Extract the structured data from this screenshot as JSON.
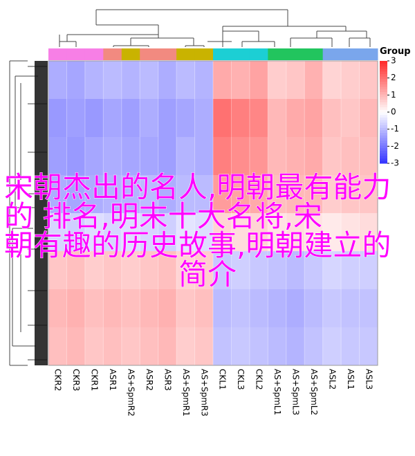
{
  "chart_data": {
    "type": "heatmap",
    "columns": [
      "CKR2",
      "CKR3",
      "CKR1",
      "ASR1",
      "AS+SpmR2",
      "ASR2",
      "ASR3",
      "AS+SpmR1",
      "AS+SpmR3",
      "CKL1",
      "CKL3",
      "CKL2",
      "AS+SpmL1",
      "AS+SpmL3",
      "AS+SpmL2",
      "ASL2",
      "ASL1",
      "ASL3"
    ],
    "group_colors": [
      "#f77fe6",
      "#f77fe6",
      "#f77fe6",
      "#f28a80",
      "#c9b300",
      "#f28a80",
      "#f28a80",
      "#c9b300",
      "#c9b300",
      "#1ccfd4",
      "#1ccfd4",
      "#1ccfd4",
      "#22c55e",
      "#22c55e",
      "#22c55e",
      "#7aa6ec",
      "#7aa6ec",
      "#7aa6ec"
    ],
    "legend_title": "Group",
    "values": [
      [
        -1.2,
        -1.3,
        -1.1,
        -1.0,
        -1.1,
        -1.0,
        -1.2,
        -1.0,
        -1.1,
        1.2,
        1.1,
        1.3,
        0.7,
        0.8,
        1.1,
        0.6,
        0.7,
        0.8
      ],
      [
        -1.5,
        -1.4,
        -1.5,
        -1.3,
        -1.4,
        -1.2,
        -1.4,
        -1.3,
        -1.2,
        2.0,
        1.8,
        1.7,
        1.0,
        1.2,
        1.3,
        0.9,
        0.8,
        1.0
      ],
      [
        -1.4,
        -1.5,
        -1.3,
        -1.2,
        -1.3,
        -1.3,
        -1.4,
        -1.1,
        -1.2,
        1.8,
        1.6,
        1.5,
        1.0,
        1.1,
        1.2,
        0.8,
        0.9,
        0.9
      ],
      [
        -1.2,
        -1.3,
        -1.2,
        -1.1,
        -1.1,
        -1.0,
        -1.2,
        -1.0,
        -1.0,
        1.4,
        1.3,
        1.2,
        0.9,
        1.0,
        1.0,
        0.7,
        0.8,
        0.8
      ],
      [
        -0.6,
        -0.7,
        -0.5,
        -0.6,
        -0.5,
        -0.6,
        -0.7,
        -0.4,
        -0.5,
        0.6,
        0.5,
        0.6,
        0.4,
        0.5,
        0.4,
        0.3,
        0.4,
        0.5
      ],
      [
        0.8,
        0.9,
        0.7,
        0.8,
        0.7,
        0.8,
        0.9,
        0.6,
        0.7,
        -0.8,
        -0.7,
        -0.8,
        -0.9,
        -1.0,
        -0.8,
        -0.6,
        -0.7,
        -0.7
      ],
      [
        1.0,
        1.1,
        0.9,
        1.0,
        0.9,
        1.0,
        1.1,
        0.8,
        0.9,
        -1.0,
        -0.9,
        -1.0,
        -1.1,
        -1.2,
        -1.0,
        -0.8,
        -0.9,
        -0.9
      ],
      [
        0.9,
        1.0,
        0.8,
        0.9,
        0.8,
        0.9,
        1.0,
        0.7,
        0.8,
        -0.9,
        -0.8,
        -0.9,
        -1.0,
        -1.1,
        -0.9,
        -0.7,
        -0.8,
        -0.8
      ]
    ],
    "zlim": [
      -3,
      3
    ],
    "zticks": [
      3,
      2,
      1,
      0,
      -1,
      -2,
      -3
    ],
    "colors": [
      "#3232ff",
      "#ffffff",
      "#ff2a2a"
    ],
    "title_lines": [
      "宋朝杰出的名人,明朝最有能力",
      "的 排名,明末十大名将,宋",
      "朝有趣的历史故事,明朝建立的",
      "简介"
    ]
  }
}
